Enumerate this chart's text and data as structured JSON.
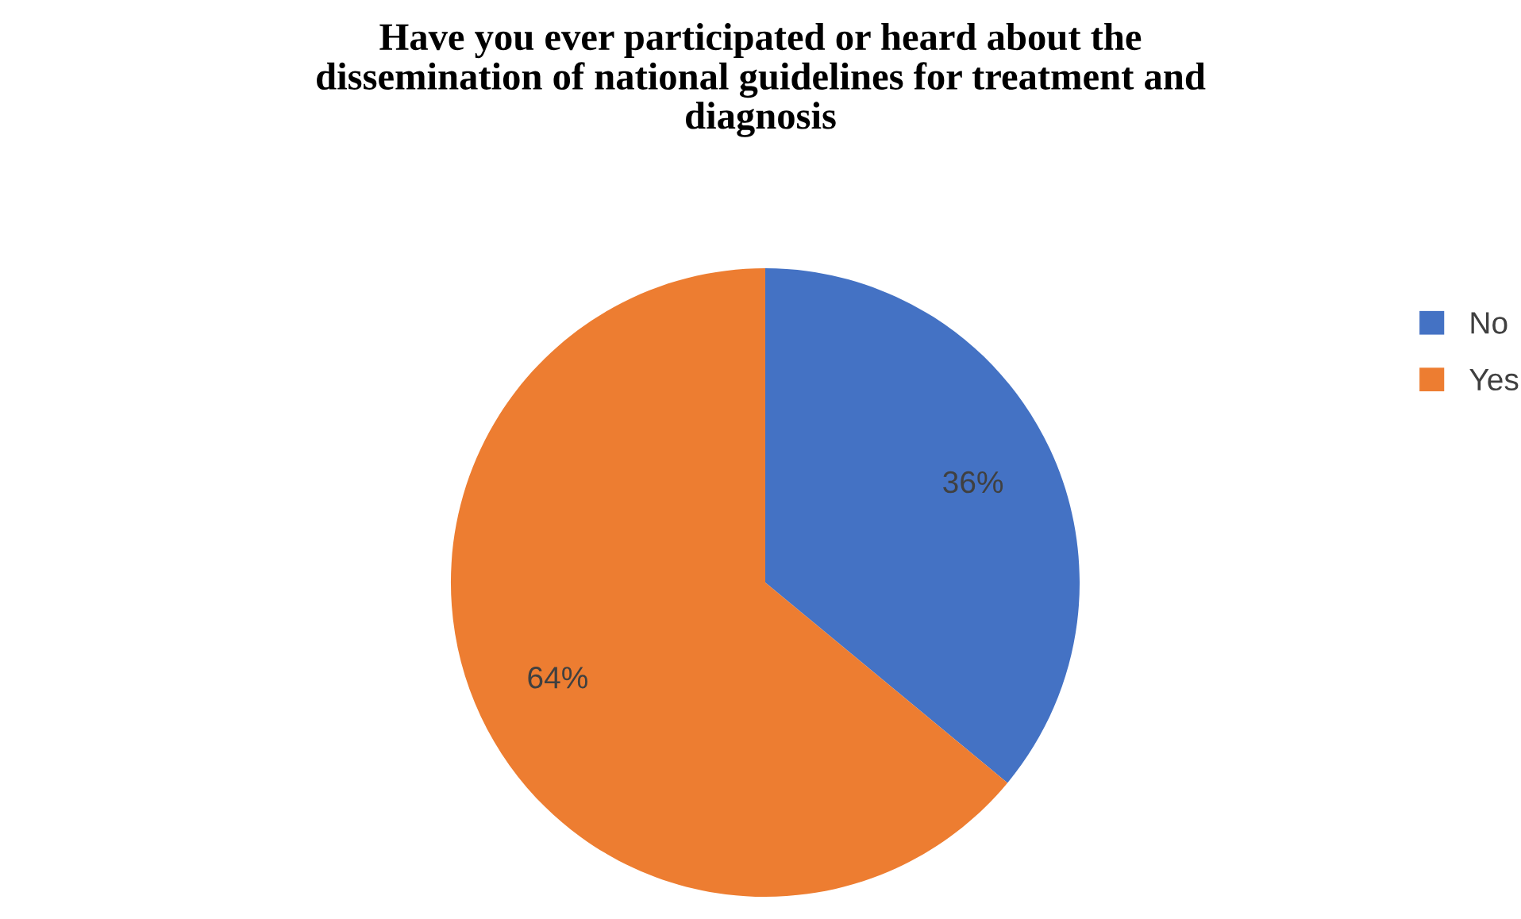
{
  "chart_data": {
    "type": "pie",
    "title": "Have you ever participated or heard about the\ndissemination of national guidelines for treatment and\ndiagnosis",
    "categories": [
      "No",
      "Yes"
    ],
    "values": [
      36,
      64
    ],
    "colors": [
      "#4472c4",
      "#ed7d31"
    ],
    "value_labels": [
      "36%",
      "64%"
    ],
    "legend": "right"
  }
}
